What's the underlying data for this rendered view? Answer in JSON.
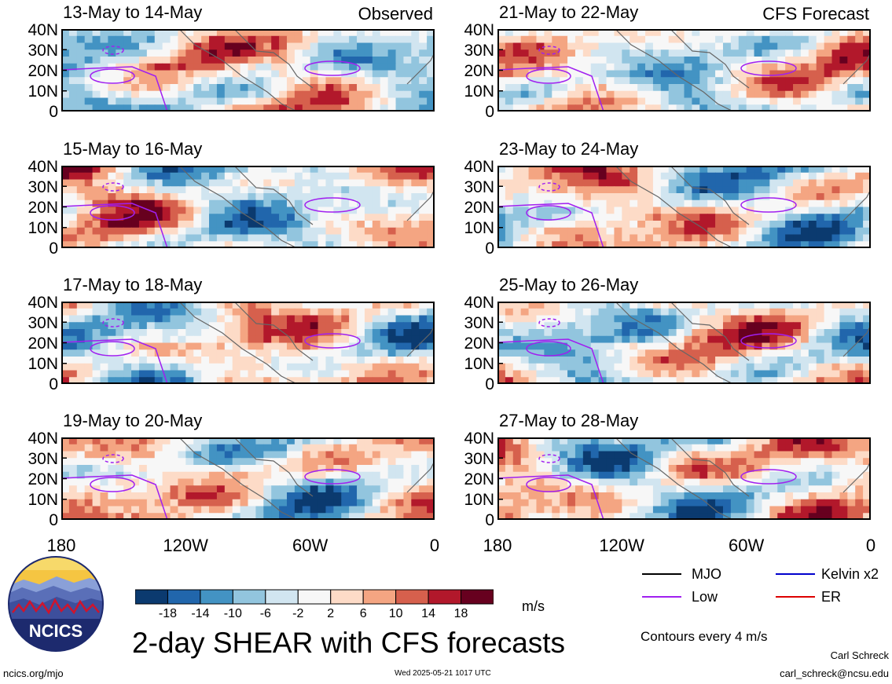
{
  "main_title": "2-day SHEAR with CFS forecasts",
  "observed_label": "Observed",
  "forecast_label": "CFS Forecast",
  "panels_left": [
    {
      "title": "13-May to 14-May"
    },
    {
      "title": "15-May to 16-May"
    },
    {
      "title": "17-May to 18-May"
    },
    {
      "title": "19-May to 20-May"
    }
  ],
  "panels_right": [
    {
      "title": "21-May to 22-May"
    },
    {
      "title": "23-May to 24-May"
    },
    {
      "title": "25-May to 26-May"
    },
    {
      "title": "27-May to 28-May"
    }
  ],
  "y_tick_labels": [
    "40N",
    "30N",
    "20N",
    "10N",
    "0"
  ],
  "x_tick_labels": [
    "180",
    "120W",
    "60W",
    "0"
  ],
  "colorbar": {
    "unit": "m/s",
    "labels": [
      "-18",
      "-14",
      "-10",
      "-6",
      "-2",
      "2",
      "6",
      "10",
      "14",
      "18"
    ],
    "colors": [
      "#0b3a6f",
      "#2166ac",
      "#4393c3",
      "#92c5de",
      "#d1e5f0",
      "#f7f7f7",
      "#fddbc7",
      "#f4a582",
      "#d6604d",
      "#b2182b",
      "#67001f"
    ]
  },
  "legend": {
    "items": [
      {
        "label": "MJO",
        "color": "#000000"
      },
      {
        "label": "Kelvin x2",
        "color": "#0000cc"
      },
      {
        "label": "Low",
        "color": "#a020f0"
      },
      {
        "label": "ER",
        "color": "#dd0000"
      }
    ],
    "contour_note": "Contours every 4 m/s"
  },
  "logo": {
    "text": "NCICS"
  },
  "footer": {
    "url": "ncics.org/mjo",
    "timestamp": "Wed 2025-05-21 1017 UTC",
    "author": "Carl Schreck",
    "email": "carl_schreck@ncsu.edu"
  }
}
